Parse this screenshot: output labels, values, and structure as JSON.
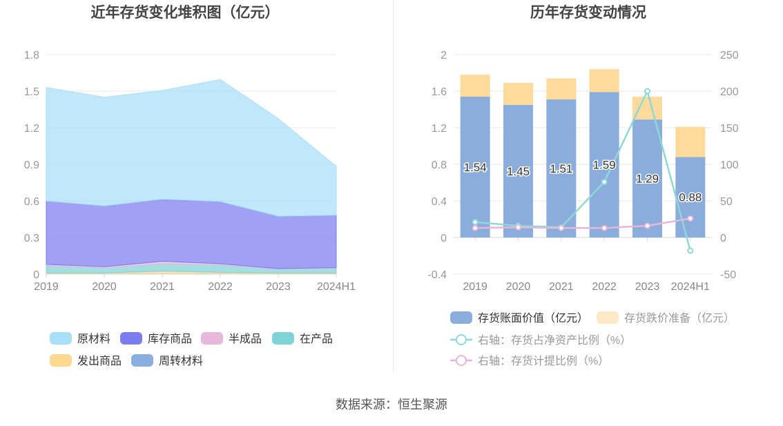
{
  "source": "数据来源：恒生聚源",
  "chart_data": [
    {
      "type": "area",
      "stacked": true,
      "title": "近年存货变化堆积图（亿元）",
      "categories": [
        "2019",
        "2020",
        "2021",
        "2022",
        "2023",
        "2024H1"
      ],
      "ylim": [
        0,
        1.8
      ],
      "yticks": [
        "0",
        "0.3",
        "0.6",
        "0.9",
        "1.2",
        "1.5",
        "1.8"
      ],
      "grid": true,
      "legend_position": "bottom",
      "series": [
        {
          "name": "原材料",
          "color": "#a9dff8",
          "values": [
            0.93,
            0.89,
            0.89,
            1.0,
            0.8,
            0.4
          ]
        },
        {
          "name": "库存商品",
          "color": "#7b7cf0",
          "values": [
            0.52,
            0.5,
            0.51,
            0.51,
            0.43,
            0.43
          ]
        },
        {
          "name": "半成品",
          "color": "#e8b8dc",
          "values": [
            0.01,
            0.01,
            0.02,
            0.01,
            0.005,
            0.003
          ]
        },
        {
          "name": "在产品",
          "color": "#7fd3d6",
          "values": [
            0.06,
            0.04,
            0.06,
            0.06,
            0.03,
            0.04
          ]
        },
        {
          "name": "发出商品",
          "color": "#fdd891",
          "values": [
            0.005,
            0.005,
            0.02,
            0.01,
            0.005,
            0.005
          ]
        },
        {
          "name": "周转材料",
          "color": "#8aaee0",
          "values": [
            0.005,
            0.005,
            0.005,
            0.005,
            0.005,
            0.005
          ]
        }
      ]
    },
    {
      "type": "bar",
      "stacked": true,
      "title": "历年存货变动情况",
      "categories": [
        "2019",
        "2020",
        "2021",
        "2022",
        "2023",
        "2024H1"
      ],
      "ylim": [
        -0.4,
        2
      ],
      "yticks": [
        "-0.4",
        "0",
        "0.4",
        "0.8",
        "1.2",
        "1.6",
        "2"
      ],
      "y2lim": [
        -50,
        250
      ],
      "y2ticks": [
        "-50",
        "0",
        "50",
        "100",
        "150",
        "200",
        "250"
      ],
      "grid": true,
      "legend_position": "bottom",
      "series": [
        {
          "name": "存货账面价值（亿元）",
          "kind": "bar",
          "axis": "left",
          "color": "#8aaddc",
          "values": [
            1.54,
            1.45,
            1.51,
            1.59,
            1.29,
            0.88
          ],
          "labels": [
            "1.54",
            "1.45",
            "1.51",
            "1.59",
            "1.29",
            "0.88"
          ]
        },
        {
          "name": "存货跌价准备（亿元）",
          "kind": "bar",
          "axis": "left",
          "color": "#fedb9b",
          "legend_color": "#fde9c6",
          "values": [
            0.24,
            0.24,
            0.23,
            0.25,
            0.25,
            0.33
          ]
        },
        {
          "name": "右轴：存货占净资产比例（%）",
          "kind": "line",
          "axis": "right",
          "color": "#8ed8d8",
          "values": [
            21,
            16,
            14,
            76,
            200,
            -18
          ]
        },
        {
          "name": "右轴：存货计提比例（%）",
          "kind": "line",
          "axis": "right",
          "color": "#e8b6d7",
          "values": [
            13,
            14,
            13,
            13,
            16,
            26
          ]
        }
      ]
    }
  ]
}
